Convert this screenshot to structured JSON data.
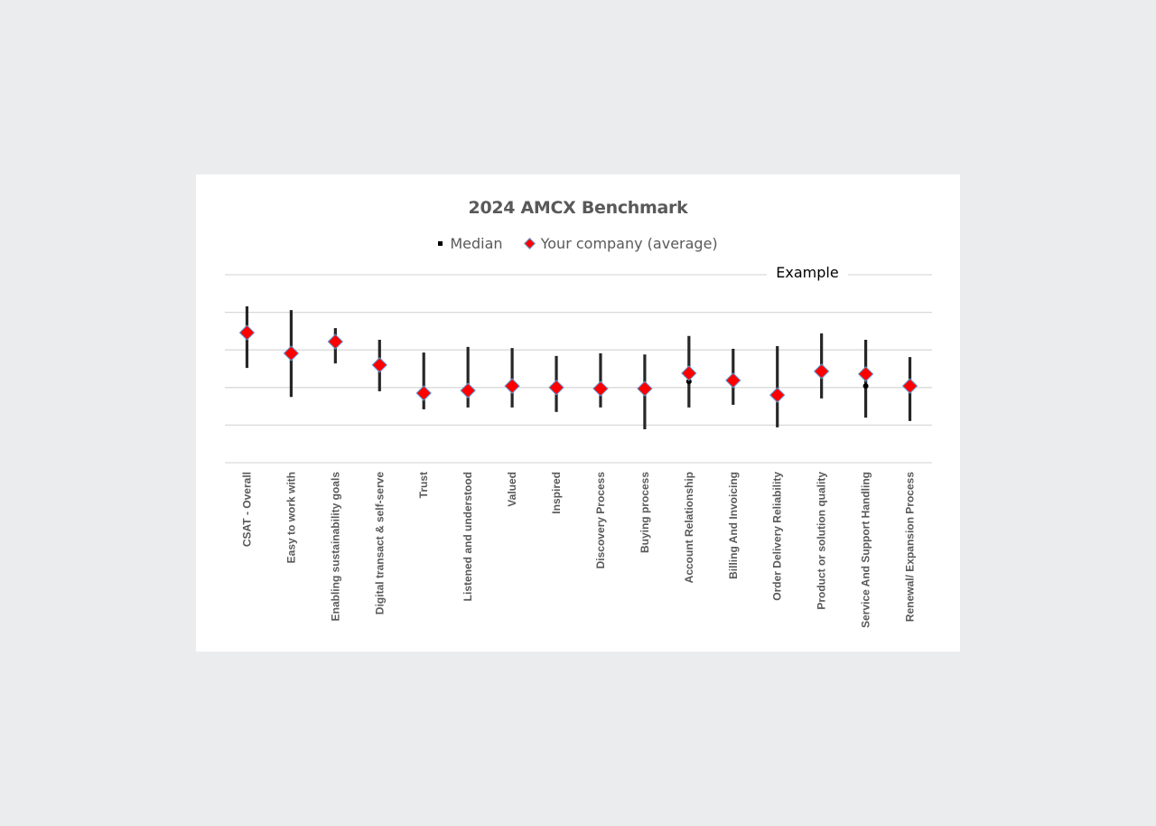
{
  "chart_data": {
    "type": "scatter",
    "subtype": "high-low range with markers",
    "title": "2024 AMCX Benchmark",
    "annotation": "Example",
    "legend": {
      "position": "top",
      "entries": [
        {
          "name": "Median",
          "marker": "small black square",
          "color": "#000000"
        },
        {
          "name": "Your company (average)",
          "marker": "diamond",
          "color": "#ff0000",
          "edge_color": "#5b9bd5"
        }
      ]
    },
    "xlabel": "",
    "ylabel": "",
    "y_axis_labels_visible": false,
    "ylim": [
      0,
      5
    ],
    "gridlines": [
      0,
      1,
      2,
      3,
      4,
      5
    ],
    "grid": true,
    "range_color": "#262626",
    "categories": [
      "CSAT - Overall",
      "Easy to work with",
      "Enabling sustainability goals",
      "Digital transact & self-serve",
      "Trust",
      "Listened and understood",
      "Valued",
      "Inspired",
      "Discovery Process",
      "Buying process",
      "Account Relationship",
      "Billing And Invoicing",
      "Order Delivery Reliability",
      "Product or solution quality",
      "Service And Support Handling",
      "Renewal/ Expansion Process"
    ],
    "series": [
      {
        "name": "High",
        "values": [
          4.16,
          4.06,
          3.58,
          3.27,
          2.93,
          3.08,
          3.05,
          2.84,
          2.91,
          2.88,
          3.37,
          3.03,
          3.1,
          3.44,
          3.27,
          2.81
        ]
      },
      {
        "name": "Low",
        "values": [
          2.52,
          1.75,
          2.64,
          1.9,
          1.42,
          1.47,
          1.47,
          1.35,
          1.47,
          0.89,
          1.47,
          1.54,
          0.94,
          1.71,
          1.2,
          1.11
        ]
      },
      {
        "name": "Your company (average)",
        "values": [
          3.46,
          2.91,
          3.22,
          2.6,
          1.85,
          1.92,
          2.04,
          2.0,
          1.97,
          1.97,
          2.38,
          2.19,
          1.8,
          2.43,
          2.36,
          2.04
        ]
      },
      {
        "name": "Median",
        "values": [
          3.46,
          2.91,
          3.22,
          2.6,
          1.85,
          1.92,
          2.04,
          1.95,
          1.97,
          1.97,
          2.16,
          2.19,
          1.8,
          2.43,
          2.04,
          2.04
        ]
      }
    ]
  }
}
